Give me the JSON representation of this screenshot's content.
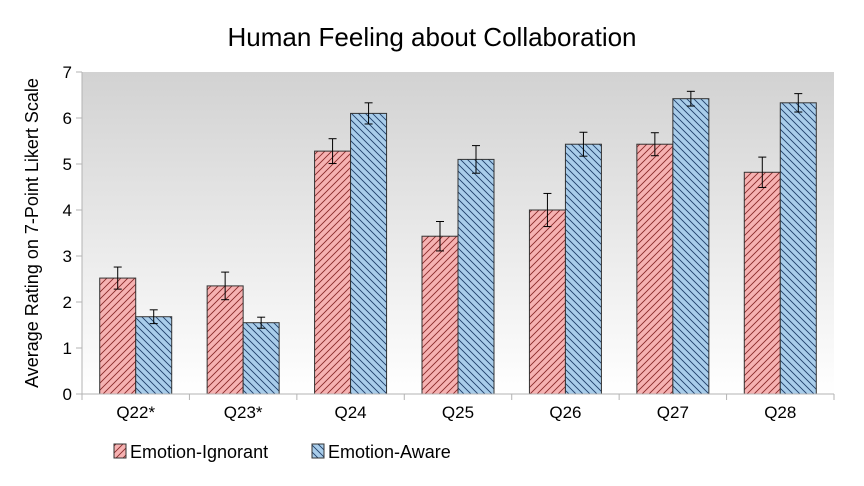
{
  "chart_data": {
    "type": "bar",
    "title": "Human Feeling about Collaboration",
    "xlabel": "",
    "ylabel": "Average Rating on 7-Point Likert Scale",
    "ylim": [
      0,
      7
    ],
    "yticks": [
      0,
      1,
      2,
      3,
      4,
      5,
      6,
      7
    ],
    "categories": [
      "Q22*",
      "Q23*",
      "Q24",
      "Q25",
      "Q26",
      "Q27",
      "Q28"
    ],
    "series": [
      {
        "name": "Emotion-Ignorant",
        "color": "#f4a6a6",
        "hatch": "forward-diagonal",
        "values": [
          2.52,
          2.35,
          5.28,
          3.43,
          4.0,
          5.43,
          4.82
        ],
        "errors": [
          0.24,
          0.3,
          0.27,
          0.32,
          0.36,
          0.25,
          0.33
        ]
      },
      {
        "name": "Emotion-Aware",
        "color": "#9ec4e6",
        "hatch": "back-diagonal",
        "values": [
          1.68,
          1.55,
          6.1,
          5.1,
          5.43,
          6.42,
          6.33
        ],
        "errors": [
          0.15,
          0.12,
          0.23,
          0.3,
          0.26,
          0.16,
          0.2
        ]
      }
    ],
    "grid": false,
    "legend_position": "bottom-left"
  }
}
